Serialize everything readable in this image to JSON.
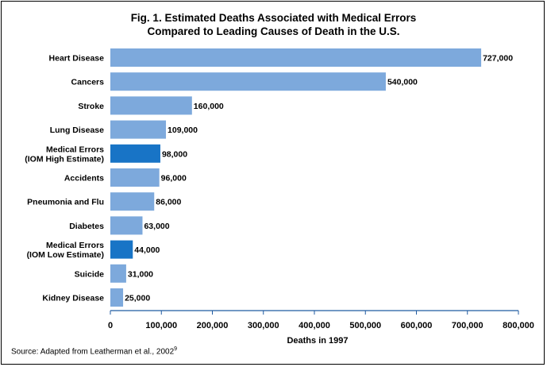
{
  "chart_data": {
    "type": "bar",
    "orientation": "horizontal",
    "title_line1": "Fig. 1. Estimated Deaths Associated with Medical Errors",
    "title_line2": "Compared to Leading Causes of Death in the U.S.",
    "xlabel": "Deaths in 1997",
    "xlim": [
      0,
      800000
    ],
    "xticks": [
      0,
      100000,
      200000,
      300000,
      400000,
      500000,
      600000,
      700000,
      800000
    ],
    "xtick_labels": [
      "0",
      "100,000",
      "200,000",
      "300,000",
      "400,000",
      "500,000",
      "600,000",
      "700,000",
      "800,000"
    ],
    "grid": false,
    "categories": [
      [
        "Heart Disease"
      ],
      [
        "Cancers"
      ],
      [
        "Stroke"
      ],
      [
        "Lung Disease"
      ],
      [
        "Medical Errors",
        "(IOM High Estimate)"
      ],
      [
        "Accidents"
      ],
      [
        "Pneumonia and Flu"
      ],
      [
        "Diabetes"
      ],
      [
        "Medical Errors",
        "(IOM Low Estimate)"
      ],
      [
        "Suicide"
      ],
      [
        "Kidney Disease"
      ]
    ],
    "values": [
      727000,
      540000,
      160000,
      109000,
      98000,
      96000,
      86000,
      63000,
      44000,
      31000,
      25000
    ],
    "value_labels": [
      "727,000",
      "540,000",
      "160,000",
      "109,000",
      "98,000",
      "96,000",
      "86,000",
      "63,000",
      "44,000",
      "31,000",
      "25,000"
    ],
    "highlight": [
      false,
      false,
      false,
      false,
      true,
      false,
      false,
      false,
      true,
      false,
      false
    ],
    "colors": {
      "bar": "#7da9dc",
      "highlight": "#1874c6",
      "axis": "#1f5aa0"
    }
  },
  "source": {
    "text": "Source: Adapted from Leatherman et al., 2002",
    "sup": "9"
  }
}
